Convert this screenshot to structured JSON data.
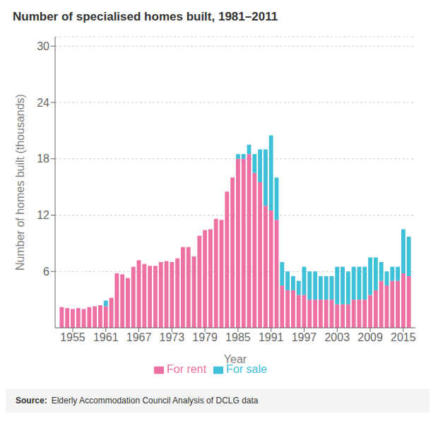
{
  "chart_data": {
    "type": "bar",
    "title": "Number of specialised homes built, 1981–2011",
    "xlabel": "Year",
    "ylabel": "Number of homes built (thousands)",
    "x": [
      1953,
      1954,
      1955,
      1956,
      1957,
      1958,
      1959,
      1960,
      1961,
      1962,
      1963,
      1964,
      1965,
      1966,
      1967,
      1968,
      1969,
      1970,
      1971,
      1972,
      1973,
      1974,
      1975,
      1976,
      1977,
      1978,
      1979,
      1980,
      1981,
      1982,
      1983,
      1984,
      1985,
      1986,
      1987,
      1988,
      1989,
      1990,
      1991,
      1992,
      1993,
      1994,
      1995,
      1996,
      1997,
      1998,
      1999,
      2000,
      2001,
      2002,
      2003,
      2004,
      2005,
      2006,
      2007,
      2008,
      2009,
      2010,
      2011,
      2012,
      2013,
      2014,
      2015,
      2016
    ],
    "series": [
      {
        "name": "For rent",
        "color": "#EE6FA3",
        "values": [
          2.2,
          2.1,
          2.0,
          2.1,
          2.0,
          2.2,
          2.3,
          2.4,
          2.3,
          3.2,
          5.8,
          5.7,
          5.3,
          6.5,
          7.2,
          6.8,
          6.6,
          6.6,
          7.0,
          7.1,
          7.0,
          7.4,
          8.6,
          8.6,
          7.6,
          9.8,
          10.4,
          10.5,
          11.6,
          11.5,
          14.5,
          16.0,
          18.0,
          18.0,
          18.5,
          16.5,
          15.5,
          13.0,
          12.5,
          11.5,
          4.5,
          4.0,
          4.0,
          3.5,
          3.5,
          3.0,
          3.0,
          3.0,
          3.0,
          3.0,
          2.5,
          2.5,
          2.5,
          3.0,
          3.0,
          3.0,
          3.5,
          4.0,
          5.0,
          4.5,
          5.0,
          5.0,
          5.8,
          5.5
        ]
      },
      {
        "name": "For sale",
        "color": "#3DC0D8",
        "values": [
          0.0,
          0.0,
          0.0,
          0.0,
          0.0,
          0.0,
          0.0,
          0.0,
          0.6,
          0.0,
          0.0,
          0.0,
          0.0,
          0.0,
          0.0,
          0.0,
          0.0,
          0.0,
          0.0,
          0.0,
          0.0,
          0.0,
          0.0,
          0.0,
          0.0,
          0.0,
          0.0,
          0.0,
          0.0,
          0.0,
          0.0,
          0.0,
          0.5,
          0.5,
          1.0,
          2.0,
          3.5,
          6.0,
          8.0,
          4.5,
          2.5,
          2.0,
          1.5,
          1.5,
          3.0,
          3.0,
          3.0,
          2.5,
          2.5,
          2.5,
          4.0,
          4.0,
          3.5,
          3.5,
          3.5,
          3.5,
          4.0,
          3.5,
          2.0,
          1.5,
          1.5,
          1.5,
          4.7,
          4.2
        ]
      }
    ],
    "stacked": true,
    "xlim": [
      1951.8,
      2017.2
    ],
    "xticks": [
      1955,
      1961,
      1967,
      1973,
      1979,
      1985,
      1991,
      1997,
      2003,
      2009,
      2015
    ],
    "ylim": [
      0,
      31
    ],
    "yticks": [
      6,
      12,
      18,
      24,
      30
    ],
    "grid": true,
    "legend": "bottom",
    "annotations": [
      "Source:",
      "Elderly Accommodation Council Analysis of DCLG data"
    ]
  }
}
